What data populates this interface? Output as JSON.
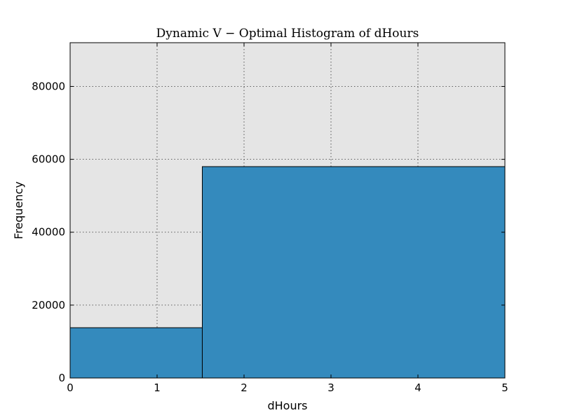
{
  "chart_data": {
    "type": "bar",
    "title": "Dynamic V − Optimal Histogram of dHours",
    "xlabel": "dHours",
    "ylabel": "Frequency",
    "xlim": [
      0,
      5
    ],
    "ylim": [
      0,
      92000
    ],
    "xticks": [
      0,
      1,
      2,
      3,
      4,
      5
    ],
    "yticks": [
      0,
      20000,
      40000,
      60000,
      80000
    ],
    "bins": [
      {
        "x_start": 0,
        "x_end": 1.52,
        "value": 13800
      },
      {
        "x_start": 1.52,
        "x_end": 5,
        "value": 58000
      }
    ],
    "grid": true,
    "colors": {
      "bar": "#348abd",
      "plot_background": "#e5e5e5"
    }
  }
}
